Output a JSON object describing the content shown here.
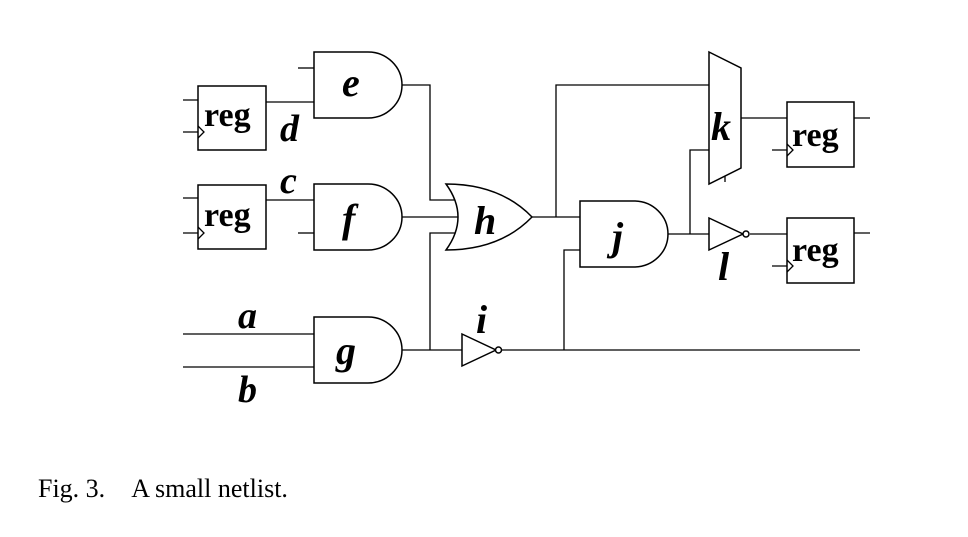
{
  "figure": {
    "register_label": "reg",
    "gates": {
      "e": "e",
      "f": "f",
      "g": "g",
      "h": "h",
      "i": "i",
      "j": "j",
      "k": "k",
      "l": "l"
    },
    "nets": {
      "a": "a",
      "b": "b",
      "c": "c",
      "d": "d"
    }
  },
  "caption": {
    "label": "Fig. 3.",
    "text": "A small netlist."
  }
}
